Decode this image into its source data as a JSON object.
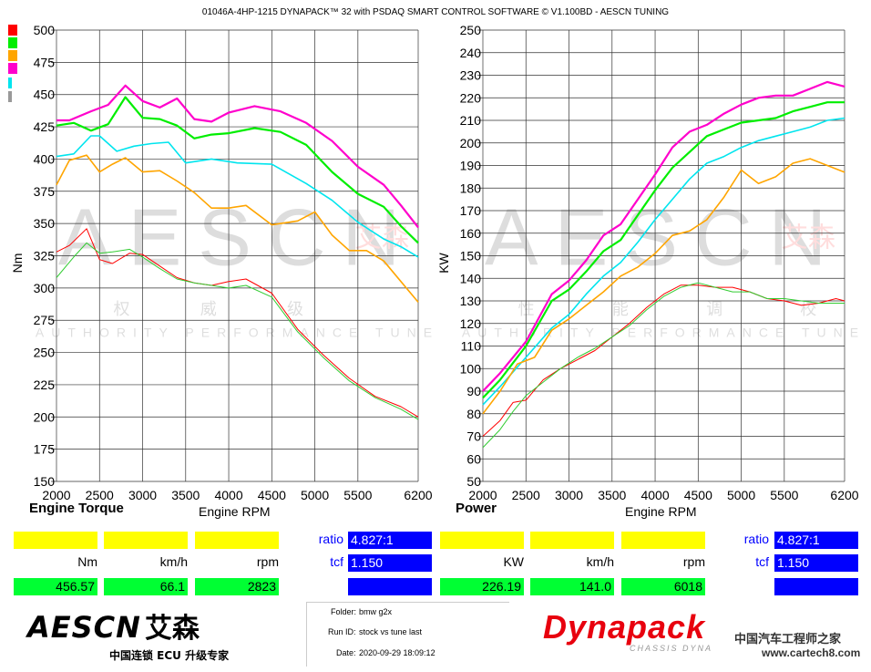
{
  "header": "01046A-4HP-1215 DYNAPACK™ 32 with PSDAQ SMART CONTROL SOFTWARE © V1.100BD - AESCN TUNING",
  "legend_colors": [
    "#ff0000",
    "#00ee00",
    "#ffa500",
    "#ff00cc",
    "#00e5ee",
    "#999999"
  ],
  "torque_panel": {
    "title": "Engine Torque",
    "xlabel": "Engine RPM",
    "unit_labels": [
      "Nm",
      "km/h",
      "rpm"
    ],
    "values": [
      "456.57",
      "66.1",
      "2823"
    ],
    "ratio_label": "ratio",
    "ratio_value": "4.827:1",
    "tcf_label": "tcf",
    "tcf_value": "1.150"
  },
  "power_panel": {
    "title": "Power",
    "xlabel": "Engine RPM",
    "unit_labels": [
      "KW",
      "km/h",
      "rpm"
    ],
    "values": [
      "226.19",
      "141.0",
      "6018"
    ],
    "ratio_label": "ratio",
    "ratio_value": "4.827:1",
    "tcf_label": "tcf",
    "tcf_value": "1.150"
  },
  "info": {
    "folder_label": "Folder:",
    "folder_value": "bmw g2x",
    "runid_label": "Run ID:",
    "runid_value": "stock vs tune last",
    "date_label": "Date:",
    "date_value": "2020-09-29 18:09:12"
  },
  "logos": {
    "aescn": "AESCN",
    "aescn_cn": "艾森",
    "aescn_tagline": "中国连锁 ECU 升级专家",
    "dynapack": "Dynapack",
    "dynapack_sub": "CHASSIS DYNA",
    "site_cn": "中国汽车工程师之家",
    "site_url": "www.cartech8.com",
    "watermark_main": "AESCN",
    "watermark_cn": "艾森",
    "watermark_sub": "AUTHORITY PERFORMANCE TUNE",
    "watermark_cn_row": [
      "权",
      "威",
      "级",
      "性",
      "能",
      "调",
      "校"
    ]
  },
  "chart_data": [
    {
      "type": "line",
      "title": "Engine Torque",
      "xlabel": "Engine RPM",
      "ylabel": "Nm",
      "xlim": [
        2000,
        6200
      ],
      "ylim": [
        150,
        500
      ],
      "xticks": [
        2000,
        2500,
        3000,
        3500,
        4000,
        4500,
        5000,
        5500,
        6200
      ],
      "yticks": [
        150,
        175,
        200,
        225,
        250,
        275,
        300,
        325,
        350,
        375,
        400,
        425,
        450,
        475,
        500
      ],
      "grid": true,
      "series": [
        {
          "color": "#ff00cc",
          "width": 2.2,
          "x": [
            2000,
            2150,
            2400,
            2600,
            2800,
            3000,
            3200,
            3400,
            3600,
            3800,
            4000,
            4300,
            4600,
            4900,
            5200,
            5500,
            5800,
            6000,
            6200
          ],
          "y": [
            430,
            430,
            437,
            442,
            457,
            445,
            440,
            447,
            431,
            429,
            436,
            441,
            437,
            428,
            414,
            394,
            380,
            364,
            347
          ]
        },
        {
          "color": "#00ee00",
          "width": 2.2,
          "x": [
            2000,
            2200,
            2400,
            2600,
            2800,
            3000,
            3200,
            3400,
            3600,
            3800,
            4000,
            4300,
            4600,
            4900,
            5200,
            5500,
            5800,
            6000,
            6200
          ],
          "y": [
            426,
            428,
            422,
            427,
            448,
            432,
            431,
            426,
            416,
            419,
            420,
            424,
            421,
            411,
            390,
            373,
            363,
            348,
            335
          ]
        },
        {
          "color": "#00e5ee",
          "width": 1.6,
          "x": [
            2000,
            2200,
            2400,
            2500,
            2700,
            2900,
            3100,
            3300,
            3500,
            3800,
            4100,
            4500,
            4900,
            5200,
            5500,
            5800,
            6000,
            6200
          ],
          "y": [
            402,
            404,
            418,
            418,
            406,
            410,
            412,
            413,
            397,
            400,
            397,
            396,
            381,
            368,
            351,
            338,
            332,
            324
          ]
        },
        {
          "color": "#ffa500",
          "width": 1.6,
          "x": [
            2000,
            2150,
            2350,
            2500,
            2650,
            2800,
            3000,
            3200,
            3400,
            3600,
            3800,
            4000,
            4200,
            4500,
            4800,
            5000,
            5200,
            5400,
            5600,
            5800,
            6000,
            6200
          ],
          "y": [
            380,
            399,
            403,
            390,
            396,
            401,
            390,
            391,
            383,
            374,
            362,
            362,
            364,
            349,
            352,
            359,
            341,
            329,
            329,
            321,
            305,
            289
          ]
        },
        {
          "color": "#ff0000",
          "width": 1.0,
          "x": [
            2000,
            2150,
            2350,
            2500,
            2650,
            2850,
            3000,
            3200,
            3400,
            3600,
            3800,
            4000,
            4200,
            4500,
            4800,
            5100,
            5400,
            5700,
            6000,
            6200
          ],
          "y": [
            328,
            333,
            346,
            322,
            319,
            327,
            326,
            317,
            308,
            304,
            302,
            305,
            307,
            296,
            268,
            248,
            230,
            216,
            208,
            200
          ]
        },
        {
          "color": "#33cc33",
          "width": 1.0,
          "x": [
            2000,
            2200,
            2350,
            2500,
            2650,
            2850,
            3000,
            3200,
            3400,
            3600,
            3800,
            4000,
            4200,
            4500,
            4800,
            5100,
            5400,
            5700,
            6000,
            6200
          ],
          "y": [
            308,
            324,
            335,
            327,
            328,
            330,
            324,
            315,
            307,
            304,
            302,
            300,
            302,
            293,
            266,
            246,
            228,
            215,
            206,
            198
          ]
        }
      ]
    },
    {
      "type": "line",
      "title": "Power",
      "xlabel": "Engine RPM",
      "ylabel": "KW",
      "xlim": [
        2000,
        6200
      ],
      "ylim": [
        50,
        250
      ],
      "xticks": [
        2000,
        2500,
        3000,
        3500,
        4000,
        4500,
        5000,
        5500,
        6200
      ],
      "yticks": [
        50,
        60,
        70,
        80,
        90,
        100,
        110,
        120,
        130,
        140,
        150,
        160,
        170,
        180,
        190,
        200,
        210,
        220,
        230,
        240,
        250
      ],
      "grid": true,
      "series": [
        {
          "color": "#ff00cc",
          "width": 2.2,
          "x": [
            2000,
            2200,
            2500,
            2800,
            3000,
            3200,
            3400,
            3600,
            3800,
            4000,
            4200,
            4400,
            4600,
            4800,
            5000,
            5200,
            5400,
            5600,
            5800,
            6000,
            6200
          ],
          "y": [
            90,
            98,
            112,
            133,
            139,
            148,
            159,
            164,
            175,
            186,
            198,
            205,
            208,
            213,
            217,
            220,
            221,
            221,
            224,
            227,
            225
          ]
        },
        {
          "color": "#00ee00",
          "width": 2.2,
          "x": [
            2000,
            2200,
            2500,
            2800,
            3000,
            3200,
            3400,
            3600,
            3800,
            4000,
            4200,
            4400,
            4600,
            4800,
            5000,
            5200,
            5400,
            5600,
            5800,
            6000,
            6200
          ],
          "y": [
            87,
            95,
            110,
            130,
            135,
            143,
            152,
            157,
            168,
            179,
            189,
            196,
            203,
            206,
            209,
            210,
            211,
            214,
            216,
            218,
            218
          ]
        },
        {
          "color": "#00e5ee",
          "width": 1.6,
          "x": [
            2000,
            2200,
            2500,
            2800,
            3000,
            3200,
            3400,
            3600,
            3800,
            4000,
            4200,
            4400,
            4600,
            4800,
            5000,
            5200,
            5400,
            5600,
            5800,
            6000,
            6200
          ],
          "y": [
            84,
            92,
            105,
            118,
            124,
            133,
            141,
            147,
            156,
            166,
            175,
            184,
            191,
            194,
            198,
            201,
            203,
            205,
            207,
            210,
            211
          ]
        },
        {
          "color": "#ffa500",
          "width": 1.6,
          "x": [
            2000,
            2200,
            2400,
            2600,
            2800,
            3000,
            3200,
            3400,
            3600,
            3800,
            4000,
            4200,
            4400,
            4600,
            4800,
            5000,
            5200,
            5400,
            5600,
            5800,
            6000,
            6200
          ],
          "y": [
            80,
            90,
            102,
            105,
            117,
            122,
            128,
            134,
            141,
            145,
            151,
            159,
            161,
            166,
            176,
            188,
            182,
            185,
            191,
            193,
            190,
            187
          ]
        },
        {
          "color": "#ff0000",
          "width": 1.0,
          "x": [
            2000,
            2200,
            2350,
            2500,
            2700,
            2900,
            3100,
            3300,
            3500,
            3700,
            3900,
            4100,
            4300,
            4500,
            4700,
            4900,
            5100,
            5300,
            5500,
            5700,
            5900,
            6100,
            6200
          ],
          "y": [
            70,
            77,
            85,
            86,
            95,
            100,
            104,
            108,
            114,
            120,
            127,
            133,
            137,
            137,
            136,
            136,
            134,
            131,
            130,
            128,
            129,
            131,
            130
          ]
        },
        {
          "color": "#33cc33",
          "width": 1.0,
          "x": [
            2000,
            2200,
            2350,
            2500,
            2700,
            2900,
            3100,
            3300,
            3500,
            3700,
            3900,
            4100,
            4300,
            4500,
            4700,
            4900,
            5100,
            5300,
            5500,
            5700,
            5900,
            6100,
            6200
          ],
          "y": [
            65,
            73,
            81,
            88,
            94,
            100,
            105,
            109,
            114,
            119,
            126,
            132,
            136,
            138,
            136,
            134,
            134,
            131,
            131,
            130,
            129,
            129,
            129
          ]
        }
      ]
    }
  ]
}
